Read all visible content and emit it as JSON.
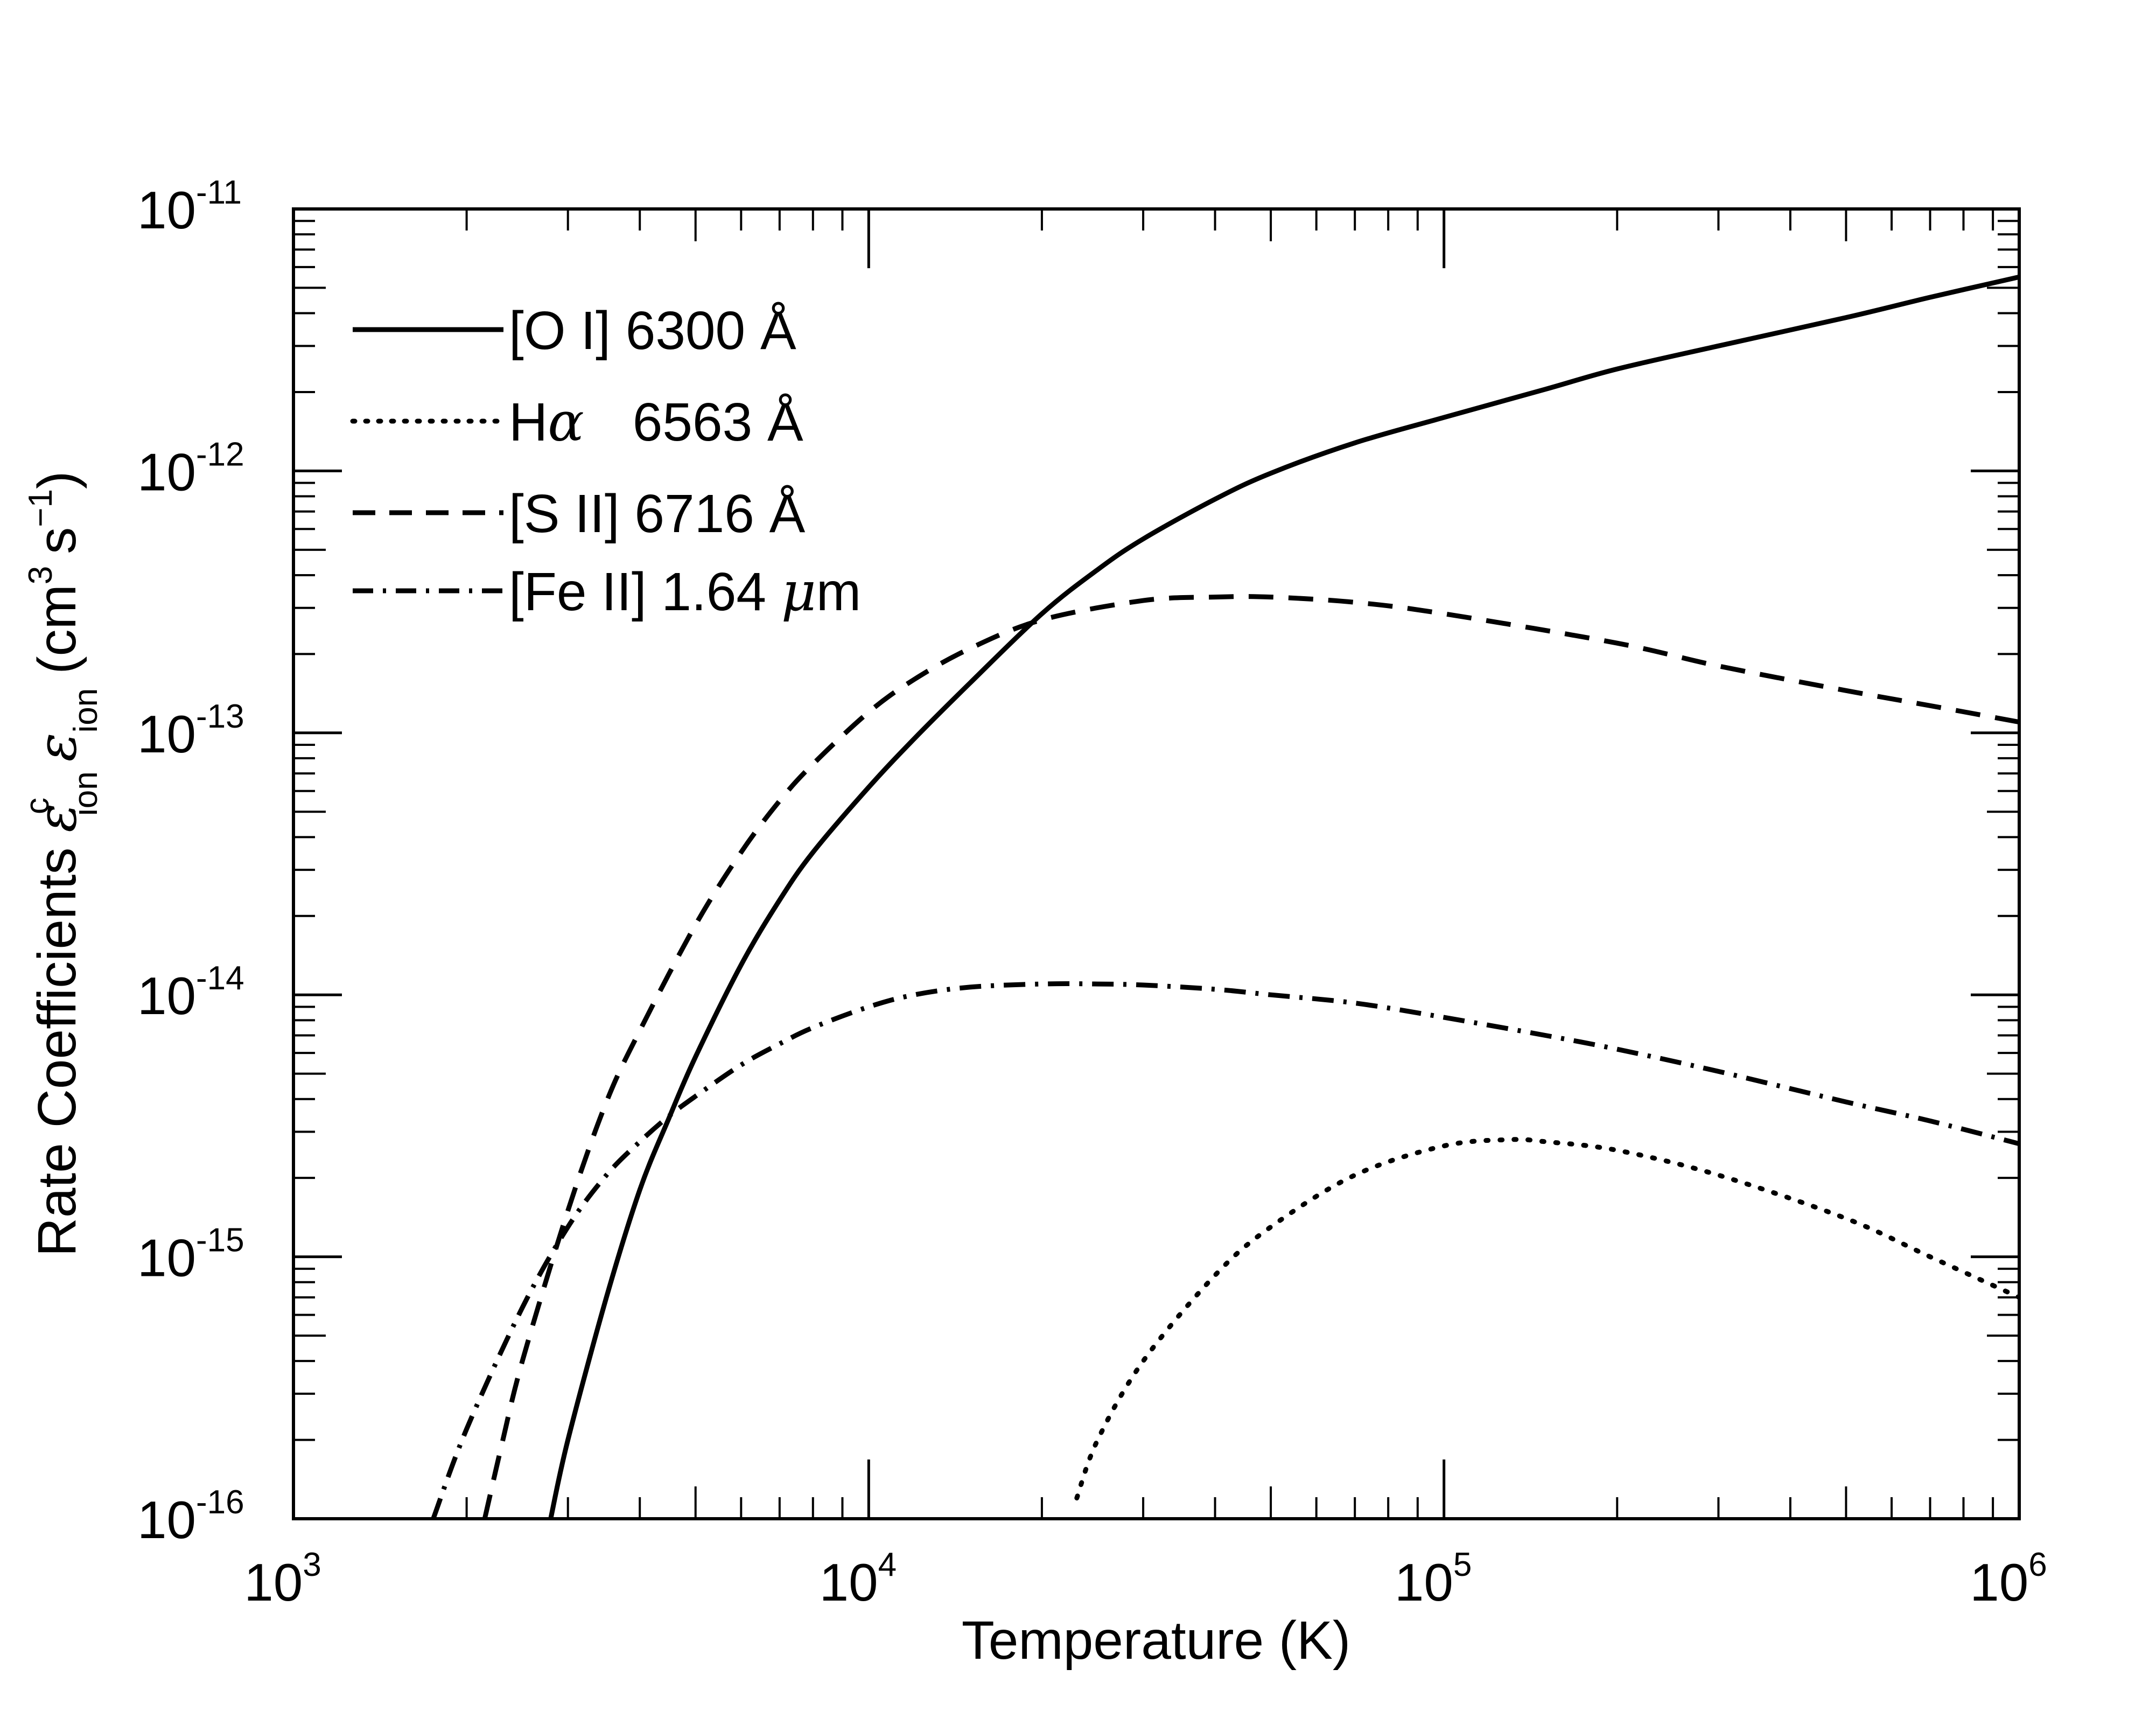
{
  "chart_data": {
    "type": "line",
    "xscale": "log",
    "yscale": "log",
    "xlim": [
      1000,
      1000000
    ],
    "ylim": [
      1e-16,
      1e-11
    ],
    "xlabel": "Temperature (K)",
    "ylabel_parts": {
      "prefix": "Rate Coefficients",
      "eps": "ε",
      "sup_c": "c",
      "sub_ion": "ion",
      "units_open": "(cm",
      "units_exp3": "3",
      "units_s": "s",
      "units_exp": "−1",
      "units_close": ")"
    },
    "x_ticks": [
      {
        "base": "10",
        "exp": "3",
        "value": 1000
      },
      {
        "base": "10",
        "exp": "4",
        "value": 10000
      },
      {
        "base": "10",
        "exp": "5",
        "value": 100000
      },
      {
        "base": "10",
        "exp": "6",
        "value": 1000000
      }
    ],
    "y_ticks": [
      {
        "base": "10",
        "exp": "-16",
        "value": 1e-16
      },
      {
        "base": "10",
        "exp": "-15",
        "value": 1e-15
      },
      {
        "base": "10",
        "exp": "-14",
        "value": 1e-14
      },
      {
        "base": "10",
        "exp": "-13",
        "value": 1e-13
      },
      {
        "base": "10",
        "exp": "-12",
        "value": 1e-12
      },
      {
        "base": "10",
        "exp": "-11",
        "value": 1e-11
      }
    ],
    "legend": {
      "placement": "top-left",
      "entries": [
        {
          "label": "[O I] 6300 Å",
          "style": "solid"
        },
        {
          "label_prefix": "H",
          "label_greek": "α",
          "label_suffix": "6563 Å",
          "style": "dotted"
        },
        {
          "label": "[S II] 6716 Å",
          "style": "dashed"
        },
        {
          "label_prefix": "[Fe II] 1.64 ",
          "label_greek": "μ",
          "label_suffix": "m",
          "style": "dashdot"
        }
      ]
    },
    "series": [
      {
        "name": "[O I] 6300 Å",
        "style": "solid",
        "x": [
          2800,
          3000,
          3500,
          4000,
          4500,
          5000,
          6000,
          7000,
          8000,
          10000,
          12000,
          15000,
          20000,
          25000,
          30000,
          40000,
          50000,
          70000,
          100000,
          150000,
          200000,
          300000,
          500000,
          700000,
          1000000
        ],
        "y": [
          1e-16,
          2e-16,
          7e-16,
          1.8e-15,
          3.4e-15,
          5.8e-15,
          1.3e-14,
          2.3e-14,
          3.5e-14,
          6.2e-14,
          9.5e-14,
          1.55e-13,
          2.85e-13,
          4.2e-13,
          5.5e-13,
          7.8e-13,
          9.8e-13,
          1.28e-12,
          1.6e-12,
          2.05e-12,
          2.45e-12,
          3e-12,
          3.85e-12,
          4.6e-12,
          5.5e-12
        ]
      },
      {
        "name": "Hα 6563 Å",
        "style": "dotted",
        "x": [
          23000,
          25000,
          30000,
          40000,
          50000,
          70000,
          100000,
          130000,
          150000,
          200000,
          300000,
          500000,
          700000,
          1000000
        ],
        "y": [
          1.2e-16,
          2e-16,
          4e-16,
          8.5e-16,
          1.3e-15,
          2.05e-15,
          2.65e-15,
          2.8e-15,
          2.75e-15,
          2.55e-15,
          2.05e-15,
          1.4e-15,
          1e-15,
          7e-16
        ]
      },
      {
        "name": "[S II] 6716 Å",
        "style": "dashed",
        "x": [
          2150,
          2300,
          2500,
          3000,
          3500,
          4000,
          5000,
          6000,
          7000,
          8000,
          10000,
          12000,
          15000,
          20000,
          30000,
          40000,
          50000,
          70000,
          100000,
          200000,
          300000,
          500000,
          700000,
          1000000
        ],
        "y": [
          1e-16,
          1.9e-16,
          4e-16,
          1.5e-15,
          3.9e-15,
          7.3e-15,
          1.85e-14,
          3.5e-14,
          5.5e-14,
          7.6e-14,
          1.2e-13,
          1.6e-13,
          2.1e-13,
          2.7e-13,
          3.2e-13,
          3.3e-13,
          3.3e-13,
          3.15e-13,
          2.85e-13,
          2.2e-13,
          1.8e-13,
          1.45e-13,
          1.27e-13,
          1.1e-13
        ]
      },
      {
        "name": "[Fe II] 1.64 μm",
        "style": "dashdot",
        "x": [
          1750,
          2000,
          2500,
          3000,
          3500,
          4000,
          4500,
          5000,
          6000,
          7000,
          8000,
          10000,
          12000,
          15000,
          20000,
          25000,
          30000,
          40000,
          50000,
          70000,
          100000,
          150000,
          200000,
          300000,
          500000,
          700000,
          1000000
        ],
        "y": [
          1e-16,
          2.2e-16,
          6.4e-16,
          1.3e-15,
          2.05e-15,
          2.75e-15,
          3.45e-15,
          4.1e-15,
          5.4e-15,
          6.5e-15,
          7.5e-15,
          9e-15,
          1e-14,
          1.07e-14,
          1.1e-14,
          1.1e-14,
          1.09e-14,
          1.05e-14,
          1e-14,
          9.3e-15,
          8.2e-15,
          7e-15,
          6.2e-15,
          5.1e-15,
          3.9e-15,
          3.3e-15,
          2.7e-15
        ]
      }
    ]
  }
}
